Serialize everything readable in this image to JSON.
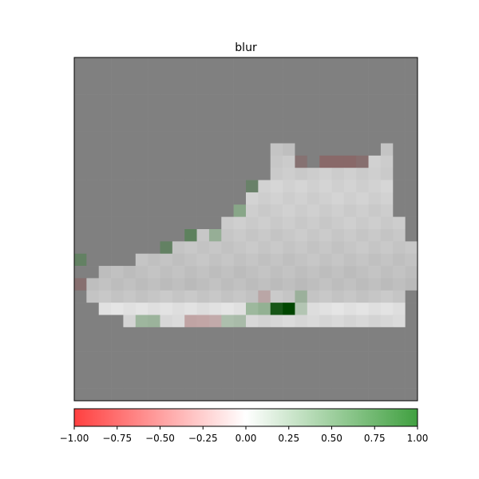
{
  "chart_data": {
    "type": "heatmap",
    "title": "blur",
    "xlabel": "",
    "ylabel": "",
    "grid": false,
    "image_size": [
      28,
      28
    ],
    "background_gray": 128,
    "colorbar": {
      "position": "bottom",
      "colormap": [
        "#ff4040",
        "#ffffff",
        "#40a040"
      ],
      "range": [
        -1.0,
        1.0
      ],
      "ticks": [
        -1.0,
        -0.75,
        -0.5,
        -0.25,
        0.0,
        0.25,
        0.5,
        0.75,
        1.0
      ],
      "tick_labels": [
        "−1.00",
        "−0.75",
        "−0.50",
        "−0.25",
        "0.00",
        "0.25",
        "0.50",
        "0.75",
        "1.00"
      ]
    },
    "sneaker_rows": [
      {
        "row": 7,
        "start": 16,
        "end": 17,
        "gray": 195
      },
      {
        "row": 7,
        "start": 25,
        "end": 25,
        "gray": 195
      },
      {
        "row": 8,
        "start": 16,
        "end": 17,
        "gray": 200
      },
      {
        "row": 8,
        "start": 24,
        "end": 25,
        "gray": 205
      },
      {
        "row": 9,
        "start": 16,
        "end": 25,
        "gray": 205
      },
      {
        "row": 10,
        "start": 15,
        "end": 25,
        "gray": 210
      },
      {
        "row": 11,
        "start": 14,
        "end": 25,
        "gray": 208
      },
      {
        "row": 12,
        "start": 13,
        "end": 25,
        "gray": 205
      },
      {
        "row": 13,
        "start": 12,
        "end": 26,
        "gray": 203
      },
      {
        "row": 14,
        "start": 10,
        "end": 26,
        "gray": 200
      },
      {
        "row": 15,
        "start": 8,
        "end": 27,
        "gray": 198
      },
      {
        "row": 16,
        "start": 5,
        "end": 27,
        "gray": 195
      },
      {
        "row": 17,
        "start": 2,
        "end": 27,
        "gray": 192
      },
      {
        "row": 18,
        "start": 1,
        "end": 27,
        "gray": 190
      },
      {
        "row": 19,
        "start": 1,
        "end": 26,
        "gray": 198
      },
      {
        "row": 20,
        "start": 2,
        "end": 26,
        "gray": 225
      },
      {
        "row": 21,
        "start": 4,
        "end": 26,
        "gray": 215
      }
    ],
    "tinted_cells": [
      {
        "row": 8,
        "col": 18,
        "value": -0.25
      },
      {
        "row": 8,
        "col": 20,
        "value": -0.4
      },
      {
        "row": 8,
        "col": 21,
        "value": -0.4
      },
      {
        "row": 8,
        "col": 22,
        "value": -0.4
      },
      {
        "row": 8,
        "col": 23,
        "value": -0.3
      },
      {
        "row": 10,
        "col": 14,
        "value": 0.4
      },
      {
        "row": 12,
        "col": 13,
        "value": 0.5
      },
      {
        "row": 14,
        "col": 9,
        "value": 0.6
      },
      {
        "row": 14,
        "col": 11,
        "value": 0.4
      },
      {
        "row": 15,
        "col": 7,
        "value": 0.5
      },
      {
        "row": 16,
        "col": 0,
        "value": 0.5
      },
      {
        "row": 18,
        "col": 0,
        "value": -0.3
      },
      {
        "row": 19,
        "col": 15,
        "value": -0.25
      },
      {
        "row": 19,
        "col": 18,
        "value": 0.35
      },
      {
        "row": 20,
        "col": 14,
        "value": 0.45
      },
      {
        "row": 20,
        "col": 15,
        "value": 0.5
      },
      {
        "row": 20,
        "col": 16,
        "value": 0.9
      },
      {
        "row": 20,
        "col": 17,
        "value": 1.0
      },
      {
        "row": 20,
        "col": 18,
        "value": 0.3
      },
      {
        "row": 21,
        "col": 5,
        "value": 0.4
      },
      {
        "row": 21,
        "col": 6,
        "value": 0.4
      },
      {
        "row": 21,
        "col": 9,
        "value": -0.35
      },
      {
        "row": 21,
        "col": 10,
        "value": -0.35
      },
      {
        "row": 21,
        "col": 11,
        "value": -0.3
      },
      {
        "row": 21,
        "col": 12,
        "value": 0.3
      },
      {
        "row": 21,
        "col": 13,
        "value": 0.3
      }
    ]
  }
}
